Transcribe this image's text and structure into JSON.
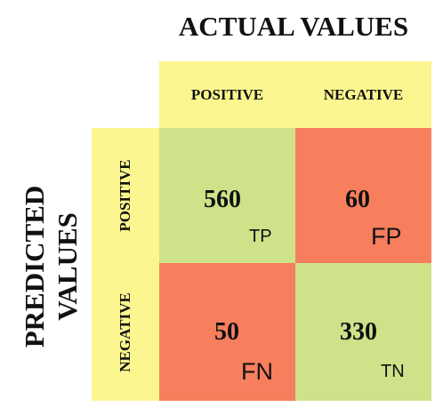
{
  "titles": {
    "actual": "ACTUAL VALUES",
    "predicted_line1": "PREDICTED",
    "predicted_line2": "VALUES"
  },
  "columns": [
    "POSITIVE",
    "NEGATIVE"
  ],
  "rows": [
    "POSITIVE",
    "NEGATIVE"
  ],
  "cells": {
    "tp": {
      "value": "560",
      "tag": "TP"
    },
    "fp": {
      "value": "60",
      "tag": "FP"
    },
    "fn": {
      "value": "50",
      "tag": "FN"
    },
    "tn": {
      "value": "330",
      "tag": "TN"
    }
  },
  "colors": {
    "header": "#fbf68f",
    "correct": "#cde289",
    "incorrect": "#f87f5e"
  }
}
